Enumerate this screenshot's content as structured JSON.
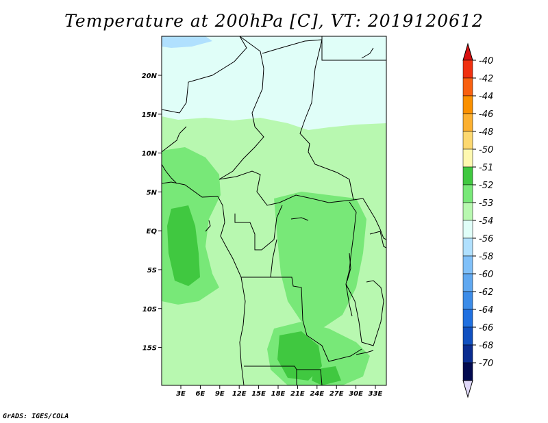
{
  "title": "Temperature at 200hPa [C], VT: 2019120612",
  "credit": "GrADS: IGES/COLA",
  "lat_labels": [
    "20N",
    "15N",
    "10N",
    "5N",
    "EQ",
    "5S",
    "10S",
    "15S"
  ],
  "lon_labels": [
    "3E",
    "6E",
    "9E",
    "12E",
    "15E",
    "18E",
    "21E",
    "24E",
    "27E",
    "30E",
    "33E"
  ],
  "colorbar": {
    "labels": [
      "-40",
      "-42",
      "-44",
      "-46",
      "-48",
      "-50",
      "-51",
      "-52",
      "-53",
      "-54",
      "-56",
      "-58",
      "-60",
      "-62",
      "-64",
      "-66",
      "-68",
      "-70"
    ],
    "colors": [
      "#f03010",
      "#f86010",
      "#fa9000",
      "#fcb030",
      "#fcd870",
      "#fef8b0",
      "#40c840",
      "#78e878",
      "#b8f8b0",
      "#e0fef8",
      "#b0e0fe",
      "#80c0f8",
      "#60a8f0",
      "#3c8ce8",
      "#2070e0",
      "#1050c0",
      "#0a2c90",
      "#020a50"
    ],
    "top_arrow_color": "#d81010",
    "bottom_arrow_color": "#e0d8f8"
  },
  "field_colors": {
    "minus_51": "#40c840",
    "minus_52": "#78e878",
    "minus_53": "#b8f8b0",
    "minus_54": "#e0fef8",
    "minus_56": "#b0e0fe"
  }
}
